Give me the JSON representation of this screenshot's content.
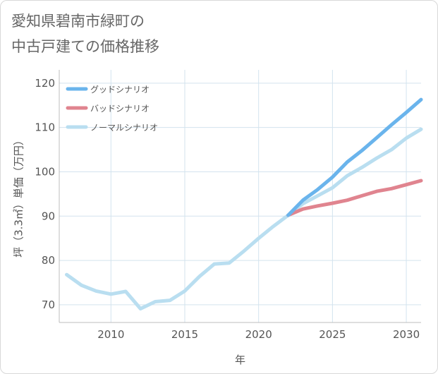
{
  "chart_data": {
    "type": "line",
    "title": "愛知県碧南市緑町の\n中古戸建ての価格推移",
    "xlabel": "年",
    "ylabel": "坪（3.3㎡）単価（万円）",
    "xlim": [
      2006.5,
      2031
    ],
    "ylim": [
      66,
      123
    ],
    "xticks": [
      2010,
      2015,
      2020,
      2025,
      2030
    ],
    "yticks": [
      70,
      80,
      90,
      100,
      110,
      120
    ],
    "grid": true,
    "legend_position": "top-left",
    "series": [
      {
        "name": "グッドシナリオ",
        "color": "#6ab4ec",
        "x": [
          2022,
          2023,
          2024,
          2025,
          2026,
          2027,
          2028,
          2029,
          2030,
          2031
        ],
        "values": [
          90.2,
          93.6,
          96.0,
          98.8,
          102.2,
          104.8,
          107.7,
          110.6,
          113.4,
          116.3
        ]
      },
      {
        "name": "バッドシナリオ",
        "color": "#e0848f",
        "x": [
          2022,
          2023,
          2024,
          2025,
          2026,
          2027,
          2028,
          2029,
          2030,
          2031
        ],
        "values": [
          90.2,
          91.6,
          92.3,
          92.9,
          93.6,
          94.6,
          95.6,
          96.2,
          97.1,
          98.0
        ]
      },
      {
        "name": "ノーマルシナリオ",
        "color": "#b9def0",
        "x": [
          2007,
          2008,
          2009,
          2010,
          2011,
          2012,
          2013,
          2014,
          2015,
          2016,
          2017,
          2018,
          2019,
          2020,
          2021,
          2022,
          2023,
          2024,
          2025,
          2026,
          2027,
          2028,
          2029,
          2030,
          2031
        ],
        "values": [
          76.8,
          74.4,
          73.1,
          72.4,
          73.0,
          69.1,
          70.7,
          71.0,
          73.1,
          76.4,
          79.2,
          79.4,
          82.1,
          85.0,
          87.7,
          90.2,
          92.8,
          94.6,
          96.4,
          99.1,
          101.0,
          103.1,
          105.0,
          107.6,
          109.6
        ]
      }
    ]
  }
}
